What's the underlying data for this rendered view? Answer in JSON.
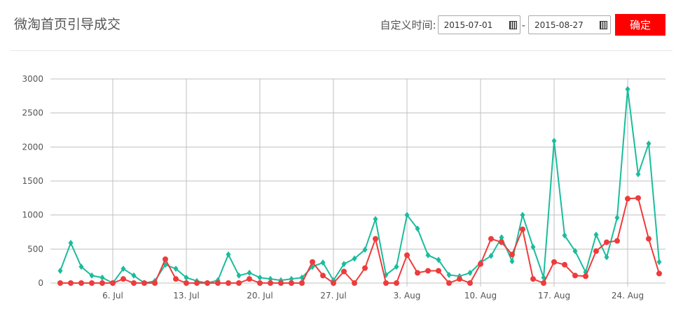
{
  "header": {
    "title": "微淘首页引导成交",
    "range_label": "自定义时间:",
    "start_date": "2015-07-01",
    "end_date": "2015-08-27",
    "separator": "-",
    "confirm_label": "确定"
  },
  "chart_data": {
    "type": "line",
    "title": "",
    "x_start": "2015-07-01",
    "x_end": "2015-08-27",
    "x_tick_labels": [
      "6. Jul",
      "13. Jul",
      "20. Jul",
      "27. Jul",
      "3. Aug",
      "10. Aug",
      "17. Aug",
      "24. Aug"
    ],
    "y_tick_labels": [
      "0",
      "500",
      "1000",
      "1500",
      "2000",
      "2500",
      "3000"
    ],
    "ylim": [
      0,
      3000
    ],
    "grid": true,
    "series": [
      {
        "color": "#1abc9c",
        "marker": "diamond",
        "values": [
          180,
          590,
          240,
          110,
          80,
          0,
          210,
          110,
          0,
          30,
          270,
          210,
          80,
          30,
          0,
          40,
          420,
          110,
          150,
          80,
          60,
          40,
          60,
          80,
          240,
          300,
          40,
          280,
          360,
          490,
          940,
          120,
          240,
          1000,
          800,
          410,
          340,
          120,
          100,
          150,
          300,
          400,
          670,
          320,
          1000,
          530,
          80,
          2090,
          700,
          470,
          160,
          710,
          380,
          960,
          2850,
          1600,
          2050,
          310
        ]
      },
      {
        "color": "#ee3b3b",
        "marker": "circle",
        "values": [
          0,
          0,
          0,
          0,
          0,
          0,
          60,
          0,
          0,
          0,
          350,
          60,
          0,
          0,
          0,
          0,
          0,
          0,
          60,
          0,
          0,
          0,
          0,
          0,
          310,
          110,
          0,
          170,
          0,
          220,
          650,
          0,
          0,
          410,
          150,
          180,
          180,
          0,
          60,
          0,
          280,
          650,
          600,
          420,
          790,
          60,
          0,
          310,
          270,
          110,
          100,
          470,
          600,
          620,
          1240,
          1250,
          650,
          140
        ]
      }
    ]
  }
}
